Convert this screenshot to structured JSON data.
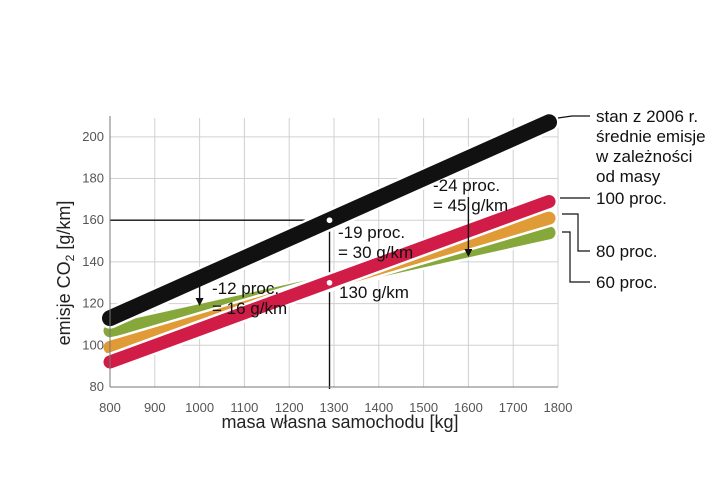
{
  "chart_data": {
    "type": "line",
    "xlabel": "masa własna samochodu [kg]",
    "ylabel": {
      "main": "emisje CO",
      "sub": "2",
      "unit": " [g/km]"
    },
    "xlim": [
      800,
      1800
    ],
    "ylim": [
      80,
      210
    ],
    "xticks": [
      "800",
      "900",
      "1000",
      "1100",
      "1200",
      "1300",
      "1400",
      "1500",
      "1600",
      "1700",
      "1800"
    ],
    "yticks": [
      "80",
      "100",
      "120",
      "140",
      "160",
      "180",
      "200"
    ],
    "grid": true,
    "series": [
      {
        "name": "60 proc.",
        "color": "#86a83a",
        "x": [
          800,
          1780
        ],
        "values": [
          107,
          154
        ]
      },
      {
        "name": "80 proc.",
        "color": "#e09a36",
        "x": [
          800,
          1780
        ],
        "values": [
          99,
          161
        ]
      },
      {
        "name": "100 proc.",
        "color": "#d21c48",
        "x": [
          800,
          1780
        ],
        "values": [
          92,
          169
        ]
      },
      {
        "name": "stan z 2006 r. średnie emisje w zależności od masy",
        "color": "#111111",
        "x": [
          800,
          1780
        ],
        "values": [
          113,
          207
        ]
      }
    ],
    "legend": [
      {
        "lines": [
          "stan z 2006 r.",
          "średnie emisje",
          "w zależności",
          "od masy"
        ]
      },
      {
        "lines": [
          "100 proc."
        ]
      },
      {
        "lines": [
          "80 proc."
        ]
      },
      {
        "lines": [
          "60 proc."
        ]
      }
    ],
    "reference": {
      "x": 1290,
      "y_upper": 160,
      "y_lower": 130
    },
    "annotations": [
      {
        "lines": [
          "-24 proc.",
          "= 45 g/km"
        ],
        "x": 1600
      },
      {
        "lines": [
          "-19 proc.",
          "= 30 g/km"
        ],
        "x": 1290
      },
      {
        "lines": [
          "-12 proc.",
          "= 16 g/km"
        ],
        "x": 1000
      },
      {
        "lines": [
          "130 g/km"
        ],
        "x": 1290
      }
    ]
  }
}
